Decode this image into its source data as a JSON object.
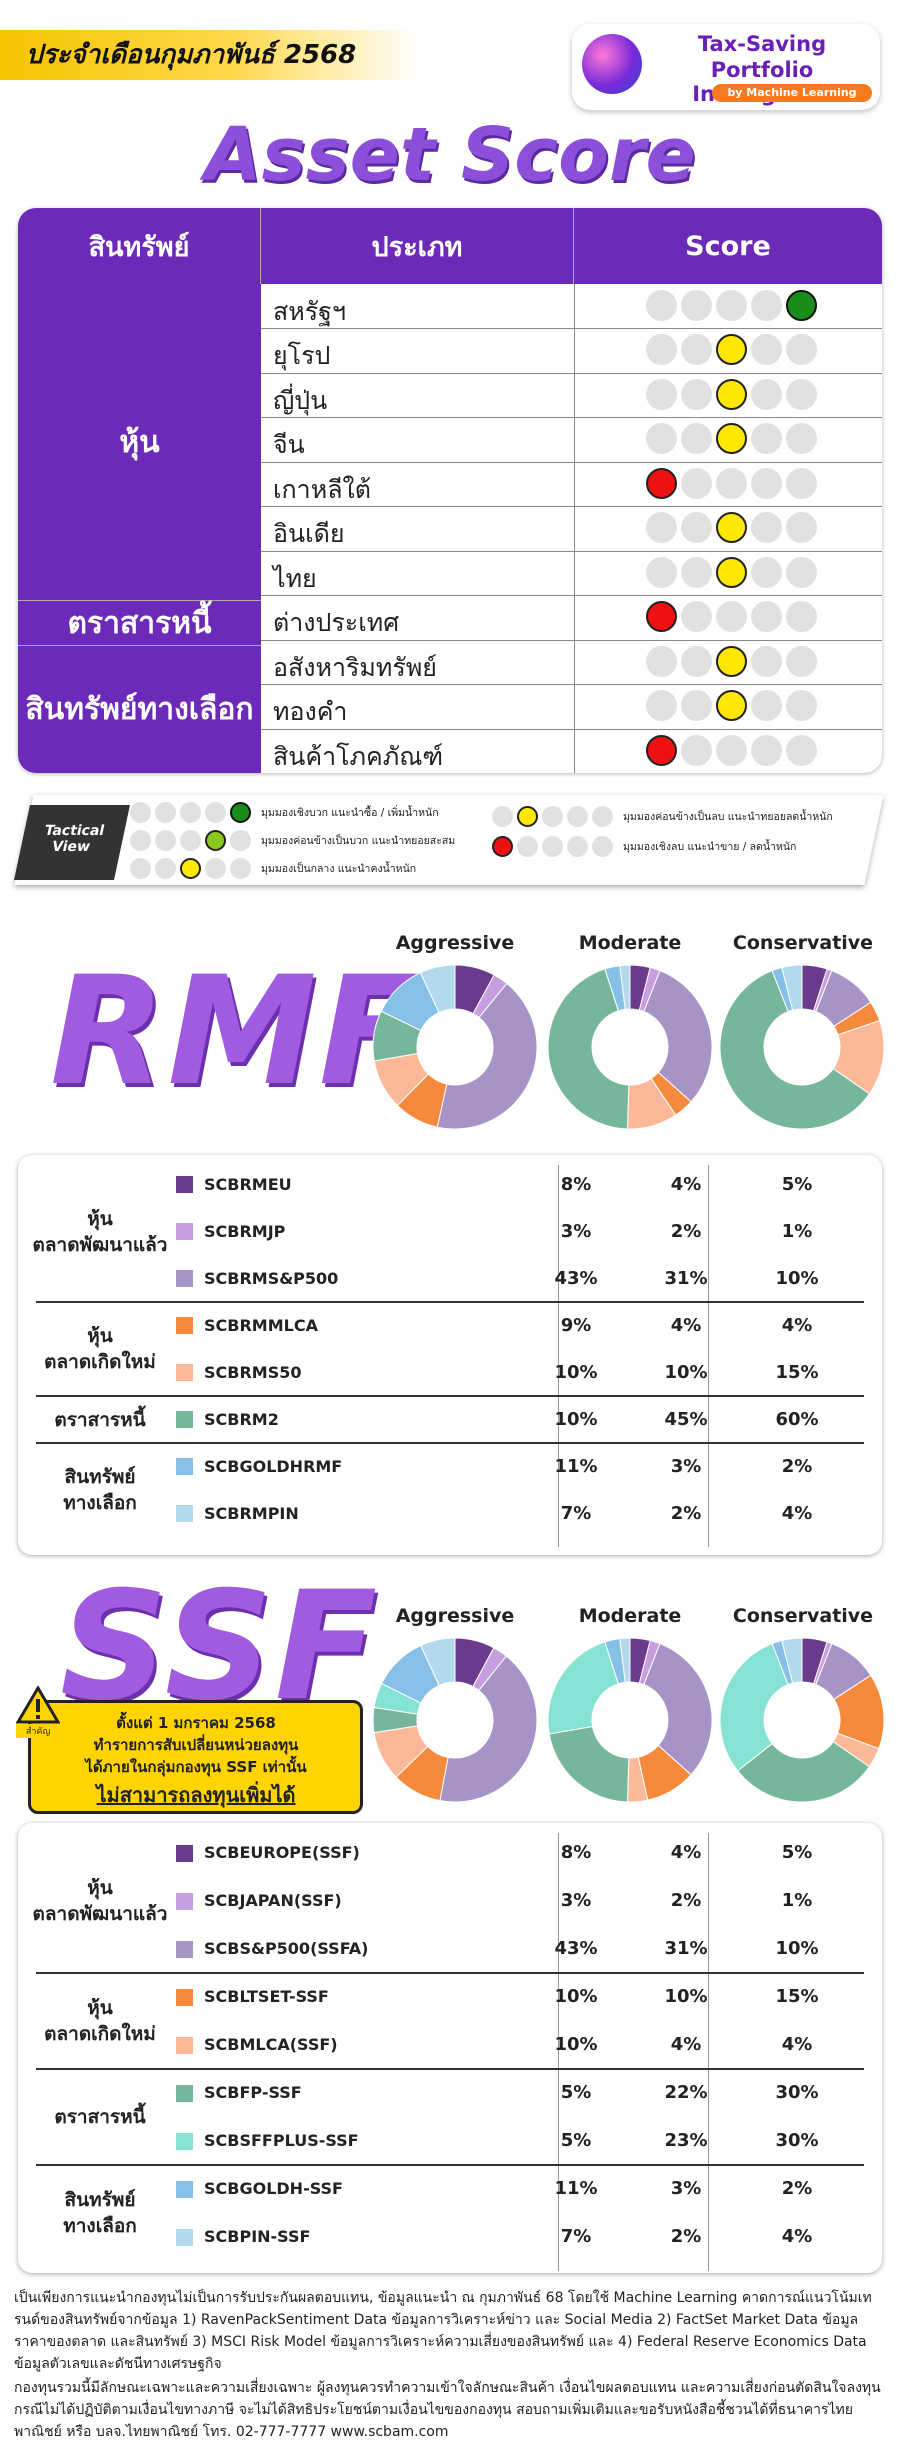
{
  "header": {
    "month": "ประจำเดือนกุมภาพันธ์ 2568",
    "brand_line1": "Tax-Saving",
    "brand_line2": "Portfolio Intelligence",
    "brand_line3": "by Machine Learning",
    "title": "Asset Score"
  },
  "asset_table": {
    "headers": [
      "สินทรัพย์",
      "ประเภท",
      "Score"
    ],
    "groups": [
      "หุ้น",
      "ตราสารหนี้",
      "สินทรัพย์ทางเลือก"
    ],
    "rows": [
      {
        "name": "สหรัฐฯ",
        "score": 5
      },
      {
        "name": "ยุโรป",
        "score": 3
      },
      {
        "name": "ญี่ปุ่น",
        "score": 3
      },
      {
        "name": "จีน",
        "score": 3
      },
      {
        "name": "เกาหลีใต้",
        "score": 1
      },
      {
        "name": "อินเดีย",
        "score": 3
      },
      {
        "name": "ไทย",
        "score": 3
      },
      {
        "name": "ต่างประเทศ",
        "score": 1
      },
      {
        "name": "อสังหาริมทรัพย์",
        "score": 3
      },
      {
        "name": "ทองคำ",
        "score": 3
      },
      {
        "name": "สินค้าโภคภัณฑ์",
        "score": 1
      }
    ],
    "score_colors": {
      "5": "#1a8c1a",
      "4": "#8bc81e",
      "3": "#ffe800",
      "1": "#ee1111"
    }
  },
  "legend": {
    "tag": "Tactical View",
    "items": [
      {
        "score": 5,
        "text": "มุมมองเชิงบวก แนะนำซื้อ / เพิ่มน้ำหนัก"
      },
      {
        "score": 4,
        "text": "มุมมองค่อนข้างเป็นบวก แนะนำทยอยสะสม"
      },
      {
        "score": 3,
        "text": "มุมมองเป็นกลาง แนะนำคงน้ำหนัก"
      },
      {
        "score": 2,
        "text": "มุมมองค่อนข้างเป็นลบ แนะนำทยอยลดน้ำหนัก"
      },
      {
        "score": 1,
        "text": "มุมมองเชิงลบ แนะนำขาย / ลดน้ำหนัก"
      }
    ]
  },
  "profiles": [
    "Aggressive",
    "Moderate",
    "Conservative"
  ],
  "rmf": {
    "title": "RMF",
    "groups": [
      {
        "label": "หุ้น\nตลาดพัฒนาแล้ว",
        "rows": [
          0,
          1,
          2
        ]
      },
      {
        "label": "หุ้น\nตลาดเกิดใหม่",
        "rows": [
          3,
          4
        ]
      },
      {
        "label": "ตราสารหนี้",
        "rows": [
          5
        ]
      },
      {
        "label": "สินทรัพย์\nทางเลือก",
        "rows": [
          6,
          7
        ]
      }
    ],
    "funds": [
      {
        "name": "SCBRMEU",
        "color": "#6a3b8c",
        "values": [
          "8%",
          "4%",
          "5%"
        ]
      },
      {
        "name": "SCBRMJP",
        "color": "#c79ee0",
        "values": [
          "3%",
          "2%",
          "1%"
        ]
      },
      {
        "name": "SCBRMS&P500",
        "color": "#a793c6",
        "values": [
          "43%",
          "31%",
          "10%"
        ]
      },
      {
        "name": "SCBRMMLCA",
        "color": "#f58a3c",
        "values": [
          "9%",
          "4%",
          "4%"
        ]
      },
      {
        "name": "SCBRMS50",
        "color": "#fbb99a",
        "values": [
          "10%",
          "10%",
          "15%"
        ]
      },
      {
        "name": "SCBRM2",
        "color": "#76b79b",
        "values": [
          "10%",
          "45%",
          "60%"
        ]
      },
      {
        "name": "SCBGOLDHRMF",
        "color": "#86c0e6",
        "values": [
          "11%",
          "3%",
          "2%"
        ]
      },
      {
        "name": "SCBRMPIN",
        "color": "#b3d9ec",
        "values": [
          "7%",
          "2%",
          "4%"
        ]
      }
    ]
  },
  "ssf": {
    "title": "SSF",
    "groups": [
      {
        "label": "หุ้น\nตลาดพัฒนาแล้ว",
        "rows": [
          0,
          1,
          2
        ]
      },
      {
        "label": "หุ้น\nตลาดเกิดใหม่",
        "rows": [
          3,
          4
        ]
      },
      {
        "label": "ตราสารหนี้",
        "rows": [
          5,
          6
        ]
      },
      {
        "label": "สินทรัพย์\nทางเลือก",
        "rows": [
          7,
          8
        ]
      }
    ],
    "funds": [
      {
        "name": "SCBEUROPE(SSF)",
        "color": "#6a3b8c",
        "values": [
          "8%",
          "4%",
          "5%"
        ]
      },
      {
        "name": "SCBJAPAN(SSF)",
        "color": "#c79ee0",
        "values": [
          "3%",
          "2%",
          "1%"
        ]
      },
      {
        "name": "SCBS&P500(SSFA)",
        "color": "#a793c6",
        "values": [
          "43%",
          "31%",
          "10%"
        ]
      },
      {
        "name": "SCBLTSET-SSF",
        "color": "#f58a3c",
        "values": [
          "10%",
          "10%",
          "15%"
        ]
      },
      {
        "name": "SCBMLCA(SSF)",
        "color": "#fbb99a",
        "values": [
          "10%",
          "4%",
          "4%"
        ]
      },
      {
        "name": "SCBFP-SSF",
        "color": "#76b79b",
        "values": [
          "5%",
          "22%",
          "30%"
        ]
      },
      {
        "name": "SCBSFFPLUS-SSF",
        "color": "#86e3d3",
        "values": [
          "5%",
          "23%",
          "30%"
        ]
      },
      {
        "name": "SCBGOLDH-SSF",
        "color": "#86c0e6",
        "values": [
          "11%",
          "3%",
          "2%"
        ]
      },
      {
        "name": "SCBPIN-SSF",
        "color": "#b3d9ec",
        "values": [
          "7%",
          "2%",
          "4%"
        ]
      }
    ]
  },
  "warning": {
    "icon_label": "สำคัญ",
    "line1": "ตั้งแต่ 1 มกราคม 2568",
    "line2": "ทำรายการสับเปลี่ยนหน่วยลงทุน",
    "line3": "ได้ภายในกลุ่มกองทุน SSF เท่านั้น",
    "line4": "ไม่สามารถลงทุนเพิ่มได้"
  },
  "footer": {
    "p1": "เป็นเพียงการแนะนำกองทุนไม่เป็นการรับประกันผลตอบแทน, ข้อมูลแนะนำ ณ กุมภาพันธ์ 68 โดยใช้ Machine Learning คาดการณ์แนวโน้มเทรนด์ของสินทรัพย์จากข้อมูล 1) RavenPackSentiment Data ข้อมูลการวิเคราะห์ข่าว และ Social Media 2) FactSet Market Data ข้อมูลราคาของตลาด และสินทรัพย์ 3) MSCI Risk Model ข้อมูลการวิเคราะห์ความเสี่ยงของสินทรัพย์ และ 4) Federal Reserve Economics Data ข้อมูลตัวเลขและดัชนีทางเศรษฐกิจ",
    "p2": "กองทุนรวมนี้มีลักษณะเฉพาะและความเสี่ยงเฉพาะ ผู้ลงทุนควรทำความเข้าใจลักษณะสินค้า เงื่อนไขผลตอบแทน และความเสี่ยงก่อนตัดสินใจลงทุน กรณีไม่ได้ปฏิบัติตามเงื่อนไขทางภาษี จะไม่ได้สิทธิประโยชน์ตามเงื่อนไขของกองทุน สอบถามเพิ่มเติมและขอรับหนังสือชี้ชวนได้ที่ธนาคารไทยพาณิชย์ หรือ บลจ.ไทยพาณิชย์ โทร. 02-777-7777 www.scbam.com"
  }
}
